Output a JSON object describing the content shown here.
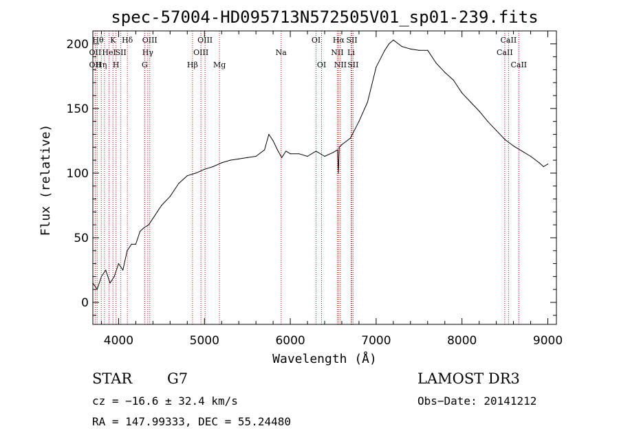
{
  "chart_data": {
    "type": "line",
    "title": "spec-57004-HD095713N572505V01_sp01-239.fits",
    "xlabel": "Wavelength (Å)",
    "ylabel": "Flux (relative)",
    "xlim": [
      3700,
      9100
    ],
    "ylim": [
      -17,
      210
    ],
    "xticks": [
      4000,
      5000,
      6000,
      7000,
      8000,
      9000
    ],
    "yticks": [
      0,
      50,
      100,
      150,
      200
    ],
    "series": [
      {
        "name": "flux",
        "x": [
          3700,
          3750,
          3800,
          3850,
          3900,
          3950,
          4000,
          4050,
          4100,
          4150,
          4200,
          4250,
          4300,
          4350,
          4400,
          4450,
          4500,
          4600,
          4700,
          4800,
          4900,
          5000,
          5100,
          5200,
          5300,
          5400,
          5500,
          5600,
          5700,
          5750,
          5800,
          5850,
          5900,
          5950,
          6000,
          6100,
          6200,
          6300,
          6400,
          6500,
          6550,
          6560,
          6570,
          6600,
          6700,
          6800,
          6900,
          7000,
          7100,
          7150,
          7200,
          7300,
          7400,
          7500,
          7600,
          7700,
          7800,
          7900,
          8000,
          8100,
          8200,
          8300,
          8400,
          8500,
          8600,
          8700,
          8800,
          8900,
          8950,
          9000
        ],
        "y": [
          15,
          10,
          20,
          25,
          15,
          20,
          30,
          25,
          40,
          45,
          45,
          55,
          58,
          60,
          65,
          70,
          75,
          82,
          92,
          98,
          100,
          103,
          105,
          108,
          110,
          111,
          112,
          113,
          118,
          130,
          125,
          118,
          112,
          117,
          115,
          115,
          113,
          117,
          113,
          116,
          118,
          100,
          120,
          122,
          127,
          140,
          155,
          182,
          195,
          200,
          203,
          198,
          196,
          195,
          195,
          185,
          178,
          172,
          162,
          155,
          148,
          140,
          133,
          126,
          121,
          117,
          113,
          108,
          105,
          107
        ]
      }
    ],
    "lines": [
      {
        "x": 3727,
        "labels": [
          "OII"
        ]
      },
      {
        "x": 3750,
        "labels": [
          "Hθ"
        ]
      },
      {
        "x": 3798,
        "labels": [
          "Hη"
        ]
      },
      {
        "x": 3835,
        "labels": [
          "OII"
        ]
      },
      {
        "x": 3889,
        "labels": [
          "HeI"
        ]
      },
      {
        "x": 3934,
        "labels": [
          "K"
        ]
      },
      {
        "x": 3970,
        "labels": [
          "H"
        ]
      },
      {
        "x": 4026,
        "labels": [
          "SII"
        ]
      },
      {
        "x": 4102,
        "labels": [
          "Hδ"
        ]
      },
      {
        "x": 4304,
        "labels": [
          "G"
        ]
      },
      {
        "x": 4340,
        "labels": [
          "Hγ"
        ]
      },
      {
        "x": 4363,
        "labels": [
          "OIII"
        ]
      },
      {
        "x": 4861,
        "labels": [
          "Hβ"
        ]
      },
      {
        "x": 4959,
        "labels": [
          "OIII"
        ]
      },
      {
        "x": 5007,
        "labels": [
          "OIII"
        ]
      },
      {
        "x": 5175,
        "labels": [
          "Mg"
        ]
      },
      {
        "x": 5893,
        "labels": [
          "Na"
        ]
      },
      {
        "x": 6300,
        "labels": [
          "OI"
        ]
      },
      {
        "x": 6364,
        "labels": [
          "OI"
        ]
      },
      {
        "x": 6548,
        "labels": [
          "NII"
        ]
      },
      {
        "x": 6563,
        "labels": [
          "Hα"
        ]
      },
      {
        "x": 6584,
        "labels": [
          "NII"
        ]
      },
      {
        "x": 6708,
        "labels": [
          "Li"
        ]
      },
      {
        "x": 6717,
        "labels": [
          "SII"
        ]
      },
      {
        "x": 6731,
        "labels": [
          "SII"
        ]
      },
      {
        "x": 8498,
        "labels": [
          "CaII"
        ]
      },
      {
        "x": 8542,
        "labels": [
          "CaII"
        ]
      },
      {
        "x": 8662,
        "labels": [
          "CaII"
        ]
      }
    ],
    "line_labels": [
      {
        "text": "Hθ",
        "x": 3760,
        "row": 1
      },
      {
        "text": "K",
        "x": 3934,
        "row": 1
      },
      {
        "text": "Hδ",
        "x": 4102,
        "row": 1
      },
      {
        "text": "OIII",
        "x": 4363,
        "row": 1
      },
      {
        "text": "OIII",
        "x": 5007,
        "row": 1
      },
      {
        "text": "OI",
        "x": 6300,
        "row": 1
      },
      {
        "text": "Hα",
        "x": 6563,
        "row": 1
      },
      {
        "text": "SII",
        "x": 6717,
        "row": 1
      },
      {
        "text": "CaII",
        "x": 8542,
        "row": 1
      },
      {
        "text": "OII",
        "x": 3727,
        "row": 2
      },
      {
        "text": "HeI",
        "x": 3889,
        "row": 2
      },
      {
        "text": "SII",
        "x": 4026,
        "row": 2
      },
      {
        "text": "Hγ",
        "x": 4340,
        "row": 2
      },
      {
        "text": "OIII",
        "x": 4959,
        "row": 2
      },
      {
        "text": "Na",
        "x": 5893,
        "row": 2
      },
      {
        "text": "NII",
        "x": 6548,
        "row": 2
      },
      {
        "text": "Li",
        "x": 6708,
        "row": 2
      },
      {
        "text": "CaII",
        "x": 8498,
        "row": 2
      },
      {
        "text": "OII",
        "x": 3727,
        "row": 3
      },
      {
        "text": "Hη",
        "x": 3798,
        "row": 3
      },
      {
        "text": "H",
        "x": 3970,
        "row": 3
      },
      {
        "text": "G",
        "x": 4304,
        "row": 3
      },
      {
        "text": "Hβ",
        "x": 4861,
        "row": 3
      },
      {
        "text": "Mg",
        "x": 5175,
        "row": 3
      },
      {
        "text": "OI",
        "x": 6364,
        "row": 3
      },
      {
        "text": "NII",
        "x": 6584,
        "row": 3
      },
      {
        "text": "SII",
        "x": 6731,
        "row": 3
      },
      {
        "text": "CaII",
        "x": 8662,
        "row": 3
      }
    ],
    "line_color": "#cc0000",
    "grid": false
  },
  "info": {
    "object_class": "STAR",
    "subclass": "G7",
    "survey": "LAMOST DR3",
    "cz": "cz = −16.6 ± 32.4 km/s",
    "obs_date": "Obs−Date: 20141212",
    "coords": "RA = 147.99333, DEC =  55.24480"
  }
}
